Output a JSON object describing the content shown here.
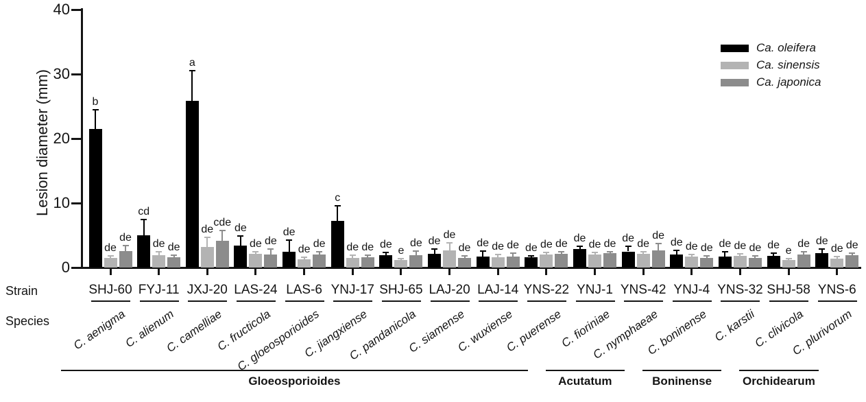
{
  "chart_data": {
    "type": "bar",
    "title": "",
    "ylabel": "Lesion diameter (mm)",
    "xlabel": "",
    "ylim": [
      0,
      40
    ],
    "yticks": [
      0,
      10,
      20,
      30,
      40
    ],
    "grid": false,
    "legend_position": "top-right",
    "row_labels": {
      "strain": "Strain",
      "species": "Species"
    },
    "legend": [
      {
        "name": "Ca. oleifera",
        "color": "#000000"
      },
      {
        "name": "Ca. sinensis",
        "color": "#b3b3b3"
      },
      {
        "name": "Ca. japonica",
        "color": "#8c8c8c"
      }
    ],
    "categories": [
      "SHJ-60",
      "FYJ-11",
      "JXJ-20",
      "LAS-24",
      "LAS-6",
      "YNJ-17",
      "SHJ-65",
      "LAJ-20",
      "LAJ-14",
      "YNS-22",
      "YNJ-1",
      "YNS-42",
      "YNJ-4",
      "YNS-32",
      "SHJ-58",
      "YNS-6"
    ],
    "species": [
      "C. aenigma",
      "C. alienum",
      "C. camelliae",
      "C. fructicola",
      "C. gloeosporioides",
      "C. jiangxiense",
      "C. pandanicola",
      "C. siamense",
      "C. wuxiense",
      "C. puerense",
      "C. fioriniae",
      "C. nymphaeae",
      "C. boninense",
      "C. karstii",
      "C. clivicola",
      "C. plurivorum"
    ],
    "series": [
      {
        "name": "Ca. oleifera",
        "color": "#000000",
        "values": [
          21.5,
          5.0,
          25.9,
          3.4,
          2.4,
          7.2,
          1.9,
          2.1,
          1.7,
          1.6,
          2.9,
          2.5,
          2.0,
          1.7,
          1.8,
          2.2
        ],
        "errors": [
          3.0,
          2.4,
          4.6,
          1.5,
          1.9,
          2.4,
          0.4,
          0.8,
          0.9,
          0.2,
          0.4,
          0.8,
          0.7,
          0.8,
          0.4,
          0.7
        ],
        "letters": [
          "b",
          "cd",
          "a",
          "de",
          "de",
          "c",
          "de",
          "de",
          "de",
          "de",
          "de",
          "de",
          "de",
          "de",
          "de",
          "de"
        ]
      },
      {
        "name": "Ca. sinensis",
        "color": "#b3b3b3",
        "values": [
          1.5,
          1.9,
          3.2,
          2.1,
          1.3,
          1.5,
          1.2,
          2.7,
          1.6,
          2.0,
          2.0,
          2.1,
          1.7,
          1.8,
          1.2,
          1.4
        ],
        "errors": [
          0.3,
          0.5,
          1.5,
          0.3,
          0.3,
          0.4,
          0.2,
          1.1,
          0.4,
          0.3,
          0.3,
          0.4,
          0.3,
          0.3,
          0.2,
          0.3
        ],
        "letters": [
          "de",
          "de",
          "de",
          "de",
          "de",
          "de",
          "e",
          "de",
          "de",
          "de",
          "de",
          "de",
          "de",
          "de",
          "e",
          "de"
        ]
      },
      {
        "name": "Ca. japonica",
        "color": "#8c8c8c",
        "values": [
          2.6,
          1.6,
          4.2,
          2.0,
          2.0,
          1.6,
          1.9,
          1.5,
          1.7,
          2.1,
          2.2,
          2.7,
          1.5,
          1.5,
          2.0,
          1.9
        ],
        "errors": [
          0.8,
          0.3,
          1.5,
          0.9,
          0.4,
          0.3,
          0.7,
          0.3,
          0.5,
          0.4,
          0.3,
          1.0,
          0.3,
          0.3,
          0.4,
          0.3
        ],
        "letters": [
          "de",
          "de",
          "cde",
          "de",
          "de",
          "de",
          "de",
          "de",
          "de",
          "de",
          "de",
          "de",
          "de",
          "de",
          "de",
          "de"
        ]
      }
    ],
    "complexes": [
      {
        "name": "Gloeosporioides",
        "from": 0,
        "to": 9
      },
      {
        "name": "Acutatum",
        "from": 10,
        "to": 11
      },
      {
        "name": "Boninense",
        "from": 12,
        "to": 13
      },
      {
        "name": "Orchidearum",
        "from": 14,
        "to": 15
      }
    ]
  }
}
